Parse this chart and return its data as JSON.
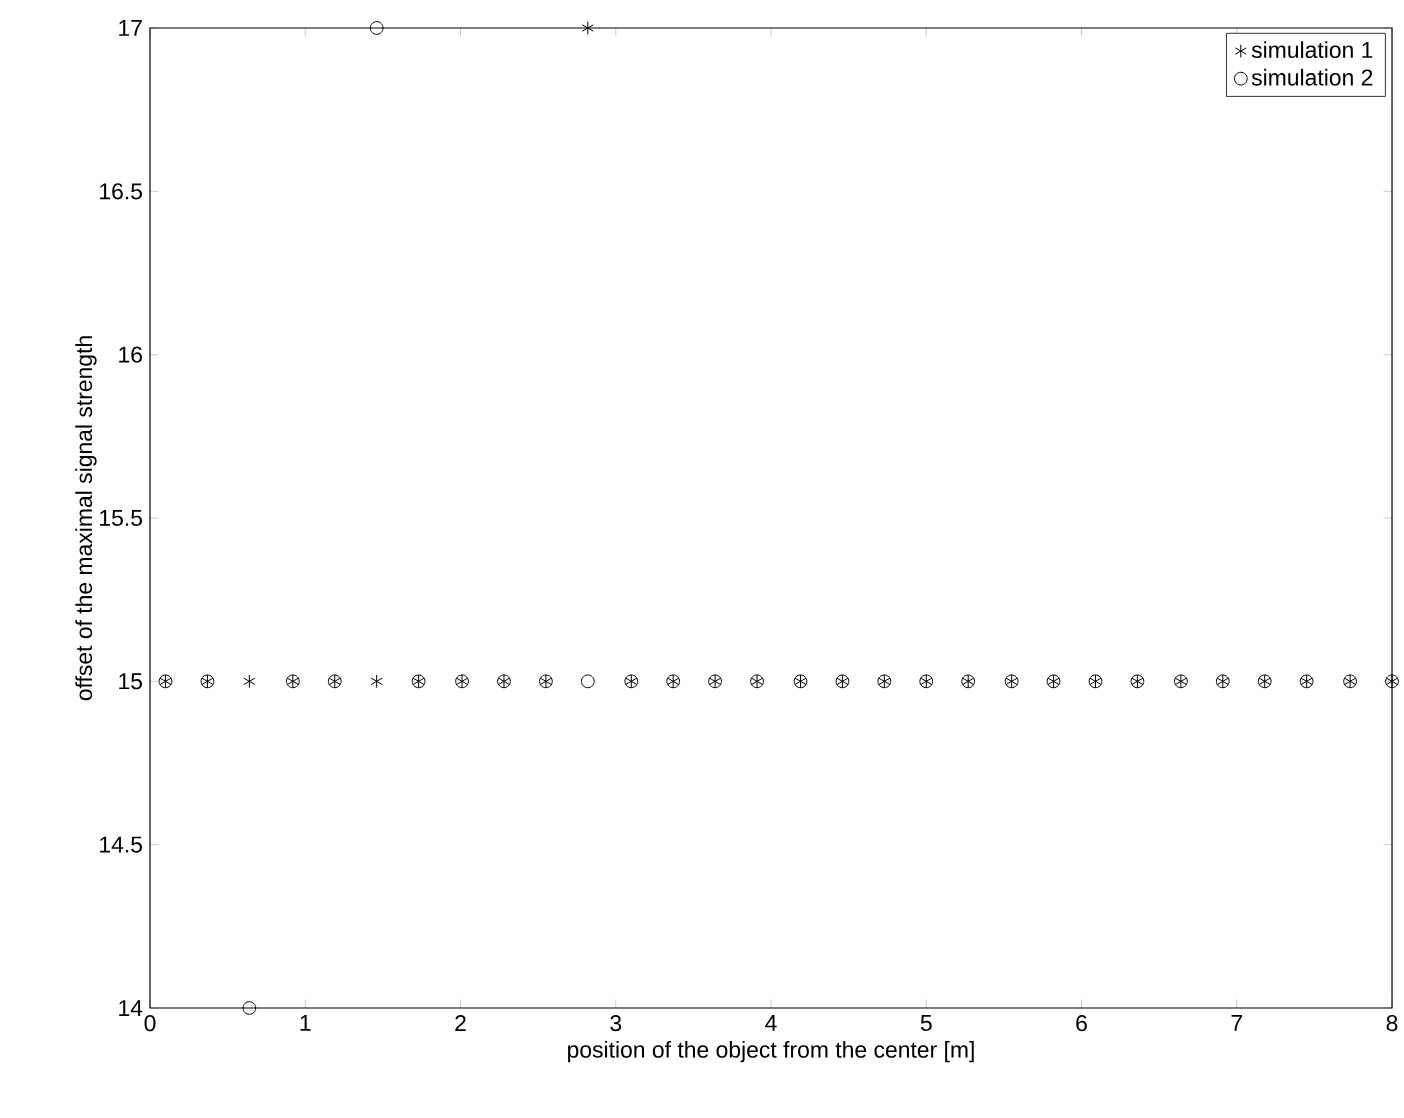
{
  "chart_data": {
    "type": "scatter",
    "xlabel": "position of the object from the center [m]",
    "ylabel": "offset of the maximal signal strength",
    "x": [
      0.1,
      0.37,
      0.64,
      0.92,
      1.19,
      1.46,
      1.73,
      2.01,
      2.28,
      2.55,
      2.82,
      3.1,
      3.37,
      3.64,
      3.91,
      4.19,
      4.46,
      4.73,
      5.0,
      5.27,
      5.55,
      5.82,
      6.09,
      6.36,
      6.64,
      6.91,
      7.18,
      7.45,
      7.73,
      8.0
    ],
    "series": [
      {
        "name": "simulation 1",
        "color": "#000000",
        "values": [
          15,
          15,
          15,
          15,
          15,
          15,
          15,
          15,
          15,
          15,
          17,
          15,
          15,
          15,
          15,
          15,
          15,
          15,
          15,
          15,
          15,
          15,
          15,
          15,
          15,
          15,
          15,
          15,
          15,
          15
        ]
      },
      {
        "name": "simulation 2",
        "color": "#000000",
        "values": [
          15,
          15,
          14,
          15,
          15,
          17,
          15,
          15,
          15,
          15,
          15,
          15,
          15,
          15,
          15,
          15,
          15,
          15,
          15,
          15,
          15,
          15,
          15,
          15,
          15,
          15,
          15,
          15,
          15,
          15
        ]
      }
    ],
    "xlim": [
      0,
      8
    ],
    "ylim": [
      14,
      17
    ],
    "xticks": [
      0,
      1,
      2,
      3,
      4,
      5,
      6,
      7,
      8
    ],
    "yticks": [
      14,
      14.5,
      15,
      15.5,
      16,
      16.5,
      17
    ],
    "grid": false,
    "legend": "top right"
  }
}
